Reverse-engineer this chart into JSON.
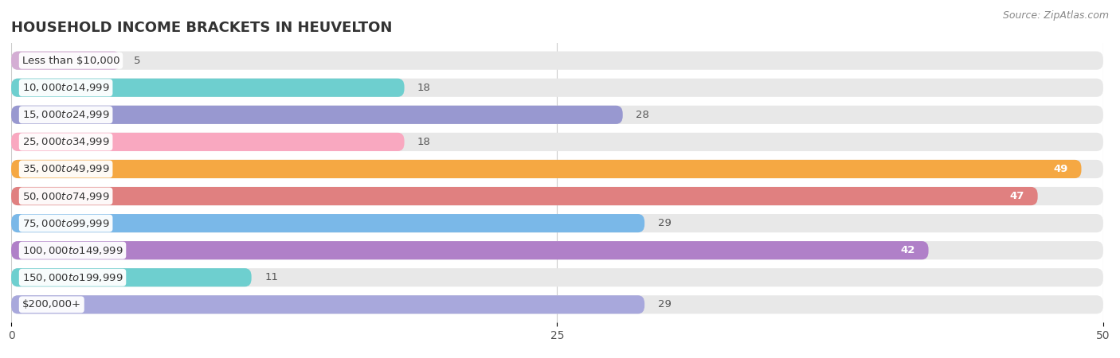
{
  "title": "HOUSEHOLD INCOME BRACKETS IN HEUVELTON",
  "source": "Source: ZipAtlas.com",
  "categories": [
    "Less than $10,000",
    "$10,000 to $14,999",
    "$15,000 to $24,999",
    "$25,000 to $34,999",
    "$35,000 to $49,999",
    "$50,000 to $74,999",
    "$75,000 to $99,999",
    "$100,000 to $149,999",
    "$150,000 to $199,999",
    "$200,000+"
  ],
  "values": [
    5,
    18,
    28,
    18,
    49,
    47,
    29,
    42,
    11,
    29
  ],
  "bar_colors": [
    "#d4aed4",
    "#6ecfcf",
    "#9898d0",
    "#f9a8c0",
    "#f5a843",
    "#e08080",
    "#7ab8e8",
    "#b080c8",
    "#6ecfcf",
    "#a8a8dc"
  ],
  "xlim": [
    0,
    50
  ],
  "xticks": [
    0,
    25,
    50
  ],
  "bar_background_color": "#e8e8e8",
  "title_fontsize": 13,
  "label_fontsize": 9.5,
  "value_fontsize": 9.5,
  "source_fontsize": 9
}
